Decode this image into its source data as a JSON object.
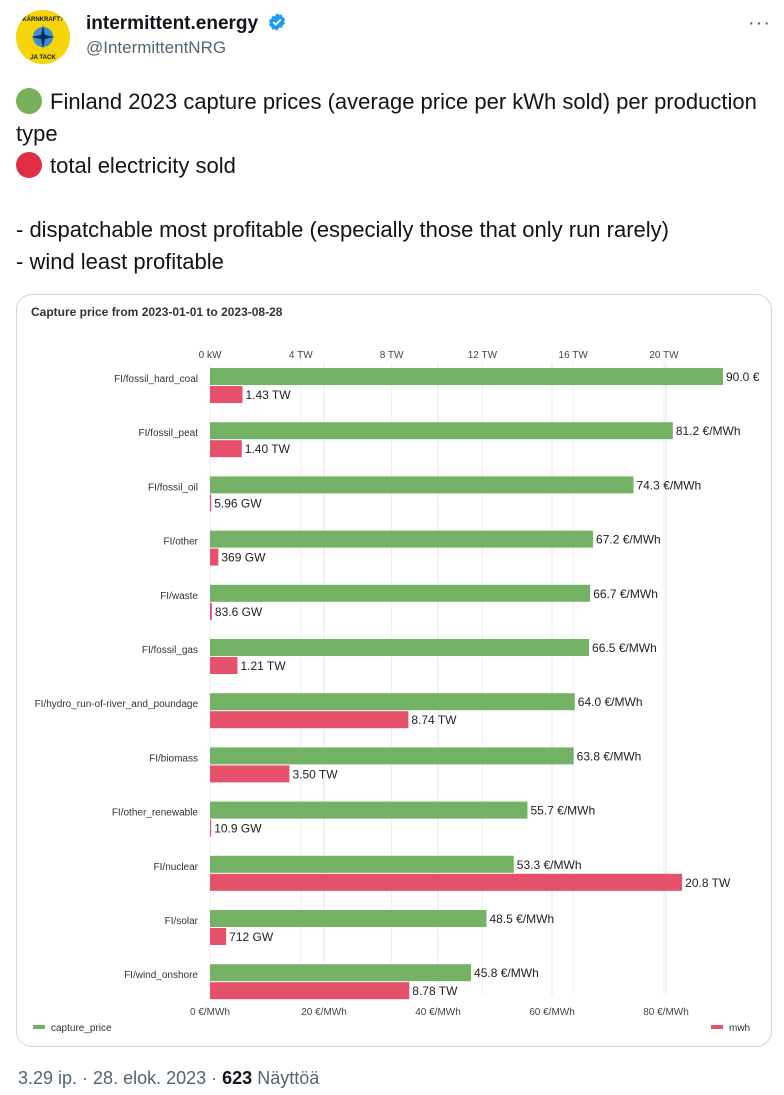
{
  "tweet": {
    "author_name": "intermittent.energy",
    "handle": "@IntermittentNRG",
    "line1": "Finland 2023 capture prices (average price per kWh sold) per production type",
    "line2": "total electricity sold",
    "bullet1": "- dispatchable most profitable (especially those that only run rarely)",
    "bullet2": "- wind least profitable",
    "time": "3.29 ip. · 28. elok. 2023 · ",
    "views_count": "623",
    "views_label": " Näyttöä",
    "avatar_text_top": "KÄRNKRAFT?",
    "avatar_text_bottom": "JA TACK"
  },
  "colors": {
    "green": "#74b266",
    "red": "#e5506a",
    "green_dot": "#78b159",
    "red_dot": "#dd2e44",
    "verified": "#1d9bf0"
  },
  "chart_data": {
    "type": "bar",
    "title": "Capture price from 2023-01-01 to 2023-08-28",
    "categories": [
      "FI/fossil_hard_coal",
      "FI/fossil_peat",
      "FI/fossil_oil",
      "FI/other",
      "FI/waste",
      "FI/fossil_gas",
      "FI/hydro_run-of-river_and_poundage",
      "FI/biomass",
      "FI/other_renewable",
      "FI/nuclear",
      "FI/solar",
      "FI/wind_onshore"
    ],
    "series": [
      {
        "name": "capture_price",
        "unit": "€/MWh",
        "values": [
          90.0,
          81.2,
          74.3,
          67.2,
          66.7,
          66.5,
          64.0,
          63.8,
          55.7,
          53.3,
          48.5,
          45.8
        ],
        "labels": [
          "90.0 €",
          "81.2 €/MWh",
          "74.3 €/MWh",
          "67.2 €/MWh",
          "66.7 €/MWh",
          "66.5 €/MWh",
          "64.0 €/MWh",
          "63.8 €/MWh",
          "55.7 €/MWh",
          "53.3 €/MWh",
          "48.5 €/MWh",
          "45.8 €/MWh"
        ]
      },
      {
        "name": "mwh",
        "unit": "TW",
        "values": [
          1.43,
          1.4,
          0.00596,
          0.369,
          0.0836,
          1.21,
          8.74,
          3.5,
          0.0109,
          20.8,
          0.712,
          8.78
        ],
        "labels": [
          "1.43 TW",
          "1.40 TW",
          "5.96 GW",
          "369 GW",
          "83.6 GW",
          "1.21 TW",
          "8.74 TW",
          "3.50 TW",
          "10.9 GW",
          "20.8 TW",
          "712 GW",
          "8.78 TW"
        ]
      }
    ],
    "top_axis": {
      "range": [
        0,
        22.6
      ],
      "ticks": [
        0,
        4,
        8,
        12,
        16,
        20
      ],
      "tick_labels": [
        "0 kW",
        "4 TW",
        "8 TW",
        "12 TW",
        "16 TW",
        "20 TW"
      ]
    },
    "bottom_axis": {
      "range": [
        0,
        90.0
      ],
      "ticks": [
        0,
        20,
        40,
        60,
        80
      ],
      "tick_labels": [
        "0 €/MWh",
        "20 €/MWh",
        "40 €/MWh",
        "60 €/MWh",
        "80 €/MWh"
      ]
    },
    "legend": [
      {
        "name": "capture_price",
        "position": "bottom-left"
      },
      {
        "name": "mwh",
        "position": "bottom-right"
      }
    ]
  }
}
